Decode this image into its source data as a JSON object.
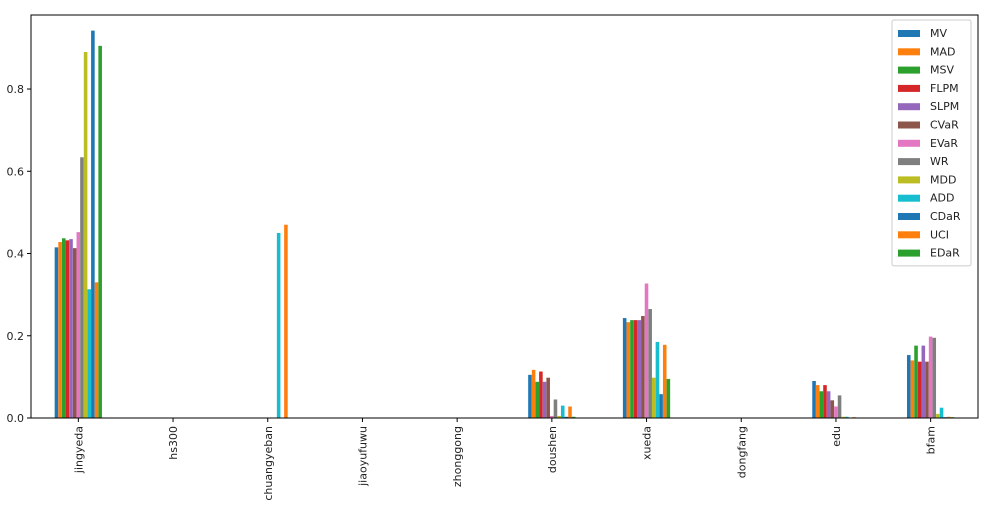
{
  "chart_data": {
    "type": "bar",
    "title": "",
    "xlabel": "",
    "ylabel": "",
    "ylim": [
      0,
      0.98
    ],
    "yticks": [
      0.0,
      0.2,
      0.4,
      0.6,
      0.8
    ],
    "ytick_labels": [
      "0.0",
      "0.2",
      "0.4",
      "0.6",
      "0.8"
    ],
    "legend_position": "top-right",
    "grid": false,
    "categories": [
      "jingyeda",
      "hs300",
      "chuangyeban",
      "jiaoyufuwu",
      "zhonggong",
      "doushen",
      "xueda",
      "dongfang",
      "edu",
      "bfam"
    ],
    "series": [
      {
        "name": "MV",
        "color": "#1f77b4",
        "values": [
          0.415,
          0,
          0,
          0,
          0,
          0.105,
          0.243,
          0,
          0.09,
          0.153
        ]
      },
      {
        "name": "MAD",
        "color": "#ff7f0e",
        "values": [
          0.428,
          0,
          0,
          0,
          0,
          0.117,
          0.233,
          0,
          0.08,
          0.14
        ]
      },
      {
        "name": "MSV",
        "color": "#2ca02c",
        "values": [
          0.437,
          0,
          0,
          0,
          0,
          0.088,
          0.238,
          0,
          0.065,
          0.176
        ]
      },
      {
        "name": "FLPM",
        "color": "#d62728",
        "values": [
          0.432,
          0,
          0,
          0,
          0,
          0.113,
          0.238,
          0,
          0.08,
          0.137
        ]
      },
      {
        "name": "SLPM",
        "color": "#9467bd",
        "values": [
          0.435,
          0,
          0,
          0,
          0,
          0.088,
          0.238,
          0,
          0.065,
          0.176
        ]
      },
      {
        "name": "CVaR",
        "color": "#8c564b",
        "values": [
          0.413,
          0,
          0,
          0,
          0,
          0.098,
          0.248,
          0,
          0.043,
          0.137
        ]
      },
      {
        "name": "EVaR",
        "color": "#e377c2",
        "values": [
          0.452,
          0,
          0,
          0,
          0,
          0.005,
          0.327,
          0,
          0.028,
          0.198
        ]
      },
      {
        "name": "WR",
        "color": "#7f7f7f",
        "values": [
          0.634,
          0,
          0,
          0,
          0,
          0.045,
          0.265,
          0,
          0.055,
          0.195
        ]
      },
      {
        "name": "MDD",
        "color": "#bcbd22",
        "values": [
          0.89,
          0,
          0,
          0,
          0,
          0.005,
          0.098,
          0,
          0.003,
          0.01
        ]
      },
      {
        "name": "ADD",
        "color": "#17becf",
        "values": [
          0.313,
          0,
          0.45,
          0,
          0,
          0.03,
          0.185,
          0,
          0.003,
          0.025
        ]
      },
      {
        "name": "CDaR",
        "color": "#1f77b4",
        "values": [
          0.942,
          0,
          0,
          0,
          0,
          0.003,
          0.058,
          0,
          0.001,
          0.002
        ]
      },
      {
        "name": "UCI",
        "color": "#ff7f0e",
        "values": [
          0.33,
          0,
          0.47,
          0,
          0,
          0.028,
          0.178,
          0,
          0.002,
          0.003
        ]
      },
      {
        "name": "EDaR",
        "color": "#2ca02c",
        "values": [
          0.905,
          0,
          0,
          0,
          0,
          0.003,
          0.095,
          0,
          0.001,
          0.002
        ]
      }
    ]
  }
}
